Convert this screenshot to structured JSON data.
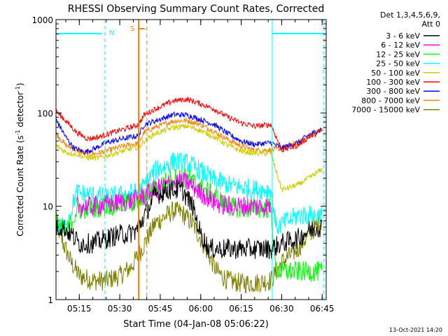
{
  "chart_data": {
    "type": "line",
    "title": "RHESSI Observing Summary Count Rates, Corrected",
    "xlabel": "Start Time (04-Jan-08 05:06:22)",
    "ylabel_main": "Corrected Count Rate (s",
    "ylabel_sup1": "-1",
    "ylabel_mid": " detector",
    "ylabel_sup2": "-1",
    "ylabel_end": ")",
    "footer": "13-Oct-2021 14:20",
    "y_scale": "log",
    "ylim": [
      1,
      1000
    ],
    "xlim": [
      "05:06:22",
      "06:46:30"
    ],
    "x_ticks": [
      "05:15",
      "05:30",
      "05:45",
      "06:00",
      "06:15",
      "06:30",
      "06:45"
    ],
    "y_ticks": [
      "1",
      "10",
      "100",
      "1000"
    ],
    "legend_header": [
      "Det 1,3,4,5,6,9,",
      "Att 0"
    ],
    "legend_position": "right",
    "flags": [
      {
        "label": "N",
        "color": "#00ffff"
      },
      {
        "label": "S",
        "color": "#ff8000"
      }
    ],
    "series": [
      {
        "name": "3 - 6 keV",
        "color": "#000000",
        "points": [
          [
            "05:06:22",
            6
          ],
          [
            "05:09",
            6
          ],
          [
            "05:12",
            5
          ],
          [
            "05:15",
            4
          ],
          [
            "05:20",
            4
          ],
          [
            "05:25",
            4.5
          ],
          [
            "05:30",
            5
          ],
          [
            "05:33",
            5
          ],
          [
            "05:36",
            5.5
          ],
          [
            "05:37",
            6
          ],
          [
            "05:43",
            13
          ],
          [
            "05:48",
            15
          ],
          [
            "05:53",
            15
          ],
          [
            "05:57",
            10
          ],
          [
            "06:00",
            5
          ],
          [
            "06:03",
            3.5
          ],
          [
            "06:10",
            3.5
          ],
          [
            "06:15",
            3.5
          ],
          [
            "06:22",
            3.5
          ],
          [
            "06:26",
            3.5
          ],
          [
            "06:30",
            4
          ],
          [
            "06:36",
            4.5
          ],
          [
            "06:40",
            5.5
          ],
          [
            "06:44",
            6
          ],
          [
            "06:45",
            6
          ]
        ]
      },
      {
        "name": "6 - 12 keV",
        "color": "#ff00ff",
        "points": [
          [
            "05:14",
            10
          ],
          [
            "05:20",
            10
          ],
          [
            "05:25",
            10.5
          ],
          [
            "05:30",
            11
          ],
          [
            "05:34",
            11.5
          ],
          [
            "05:37",
            12
          ],
          [
            "05:43",
            15
          ],
          [
            "05:50",
            18
          ],
          [
            "05:55",
            18
          ],
          [
            "06:00",
            14
          ],
          [
            "06:05",
            11
          ],
          [
            "06:10",
            10
          ],
          [
            "06:15",
            10
          ],
          [
            "06:20",
            10
          ],
          [
            "06:26",
            10
          ]
        ]
      },
      {
        "name": "12 - 25 keV",
        "color": "#00ff00",
        "points": [
          [
            "05:06:22",
            7
          ],
          [
            "05:10",
            5
          ],
          [
            "05:14",
            9
          ],
          [
            "05:20",
            9.5
          ],
          [
            "05:25",
            10
          ],
          [
            "05:30",
            10.5
          ],
          [
            "05:35",
            11
          ],
          [
            "05:37",
            11
          ],
          [
            "05:43",
            16
          ],
          [
            "05:50",
            20
          ],
          [
            "05:55",
            20
          ],
          [
            "06:00",
            16
          ],
          [
            "06:05",
            13
          ],
          [
            "06:10",
            10
          ],
          [
            "06:15",
            9.5
          ],
          [
            "06:20",
            9.5
          ],
          [
            "06:26",
            9.5
          ],
          [
            "06:28",
            2
          ],
          [
            "06:36",
            2
          ],
          [
            "06:45",
            2
          ]
        ]
      },
      {
        "name": "25 - 50 keV",
        "color": "#00ffff",
        "points": [
          [
            "05:06:22",
            6
          ],
          [
            "05:10",
            6
          ],
          [
            "05:14",
            14
          ],
          [
            "05:20",
            13
          ],
          [
            "05:25",
            12.5
          ],
          [
            "05:30",
            13
          ],
          [
            "05:35",
            14
          ],
          [
            "05:37",
            14
          ],
          [
            "05:43",
            24
          ],
          [
            "05:50",
            30
          ],
          [
            "05:55",
            29
          ],
          [
            "06:00",
            24
          ],
          [
            "06:05",
            19
          ],
          [
            "06:10",
            17
          ],
          [
            "06:15",
            16
          ],
          [
            "06:20",
            15
          ],
          [
            "06:26",
            15
          ],
          [
            "06:28",
            6
          ],
          [
            "06:36",
            8
          ],
          [
            "06:42",
            8
          ],
          [
            "06:45",
            8
          ]
        ]
      },
      {
        "name": "50 - 100 keV",
        "color": "#cccc00",
        "points": [
          [
            "05:06:22",
            45
          ],
          [
            "05:10",
            38
          ],
          [
            "05:14",
            36
          ],
          [
            "05:18",
            33
          ],
          [
            "05:22",
            33
          ],
          [
            "05:27",
            36
          ],
          [
            "05:31",
            39
          ],
          [
            "05:35",
            42
          ],
          [
            "05:37",
            43
          ],
          [
            "05:39",
            50
          ],
          [
            "05:43",
            60
          ],
          [
            "05:50",
            70
          ],
          [
            "05:55",
            72
          ],
          [
            "06:00",
            65
          ],
          [
            "06:05",
            55
          ],
          [
            "06:10",
            45
          ],
          [
            "06:15",
            39
          ],
          [
            "06:20",
            37
          ],
          [
            "06:26",
            37
          ],
          [
            "06:30",
            15
          ],
          [
            "06:36",
            17
          ],
          [
            "06:40",
            20
          ],
          [
            "06:45",
            25
          ]
        ]
      },
      {
        "name": "100 - 300 keV",
        "color": "#ff0000",
        "points": [
          [
            "05:06:22",
            105
          ],
          [
            "05:10",
            82
          ],
          [
            "05:14",
            62
          ],
          [
            "05:18",
            53
          ],
          [
            "05:22",
            55
          ],
          [
            "05:26",
            60
          ],
          [
            "05:30",
            65
          ],
          [
            "05:34",
            70
          ],
          [
            "05:37",
            75
          ],
          [
            "05:39",
            95
          ],
          [
            "05:43",
            110
          ],
          [
            "05:50",
            135
          ],
          [
            "05:55",
            140
          ],
          [
            "06:00",
            125
          ],
          [
            "06:05",
            110
          ],
          [
            "06:10",
            90
          ],
          [
            "06:15",
            78
          ],
          [
            "06:20",
            72
          ],
          [
            "06:26",
            75
          ],
          [
            "06:30",
            40
          ],
          [
            "06:36",
            45
          ],
          [
            "06:40",
            55
          ],
          [
            "06:45",
            65
          ]
        ]
      },
      {
        "name": "300 - 800 keV",
        "color": "#0000ff",
        "points": [
          [
            "05:06:22",
            85
          ],
          [
            "05:10",
            55
          ],
          [
            "05:13",
            42
          ],
          [
            "05:17",
            38
          ],
          [
            "05:21",
            42
          ],
          [
            "05:25",
            48
          ],
          [
            "05:30",
            52
          ],
          [
            "05:34",
            55
          ],
          [
            "05:37",
            57
          ],
          [
            "05:39",
            75
          ],
          [
            "05:43",
            82
          ],
          [
            "05:50",
            96
          ],
          [
            "05:55",
            95
          ],
          [
            "06:00",
            85
          ],
          [
            "06:05",
            75
          ],
          [
            "06:10",
            60
          ],
          [
            "06:15",
            50
          ],
          [
            "06:20",
            46
          ],
          [
            "06:26",
            48
          ],
          [
            "06:30",
            42
          ],
          [
            "06:36",
            48
          ],
          [
            "06:40",
            58
          ],
          [
            "06:45",
            68
          ]
        ]
      },
      {
        "name": "800 - 7000 keV",
        "color": "#ff8000",
        "points": [
          [
            "05:06:22",
            60
          ],
          [
            "05:10",
            45
          ],
          [
            "05:14",
            40
          ],
          [
            "05:18",
            36
          ],
          [
            "05:22",
            37
          ],
          [
            "05:26",
            40
          ],
          [
            "05:30",
            43
          ],
          [
            "05:34",
            46
          ],
          [
            "05:37",
            47
          ],
          [
            "05:39",
            62
          ],
          [
            "05:43",
            70
          ],
          [
            "05:50",
            82
          ],
          [
            "05:55",
            83
          ],
          [
            "06:00",
            75
          ],
          [
            "06:05",
            63
          ],
          [
            "06:10",
            52
          ],
          [
            "06:15",
            44
          ],
          [
            "06:20",
            40
          ],
          [
            "06:26",
            40
          ],
          [
            "06:30",
            42
          ],
          [
            "06:36",
            48
          ],
          [
            "06:40",
            56
          ],
          [
            "06:45",
            66
          ]
        ]
      },
      {
        "name": "7000 - 15000 keV",
        "color": "#808000",
        "points": [
          [
            "05:06:22",
            7
          ],
          [
            "05:09",
            4
          ],
          [
            "05:12",
            2.5
          ],
          [
            "05:15",
            1.8
          ],
          [
            "05:20",
            1.6
          ],
          [
            "05:25",
            1.6
          ],
          [
            "05:30",
            1.8
          ],
          [
            "05:34",
            2.2
          ],
          [
            "05:37",
            3.0
          ],
          [
            "05:43",
            6.5
          ],
          [
            "05:50",
            9
          ],
          [
            "05:53",
            8.5
          ],
          [
            "05:57",
            6.5
          ],
          [
            "06:00",
            4.5
          ],
          [
            "06:03",
            3
          ],
          [
            "06:06",
            2
          ],
          [
            "06:10",
            1.6
          ],
          [
            "06:15",
            1.5
          ],
          [
            "06:20",
            1.5
          ],
          [
            "06:26",
            1.6
          ],
          [
            "06:30",
            2.5
          ],
          [
            "06:36",
            3.5
          ],
          [
            "06:40",
            5
          ],
          [
            "06:45",
            7
          ]
        ]
      }
    ]
  }
}
